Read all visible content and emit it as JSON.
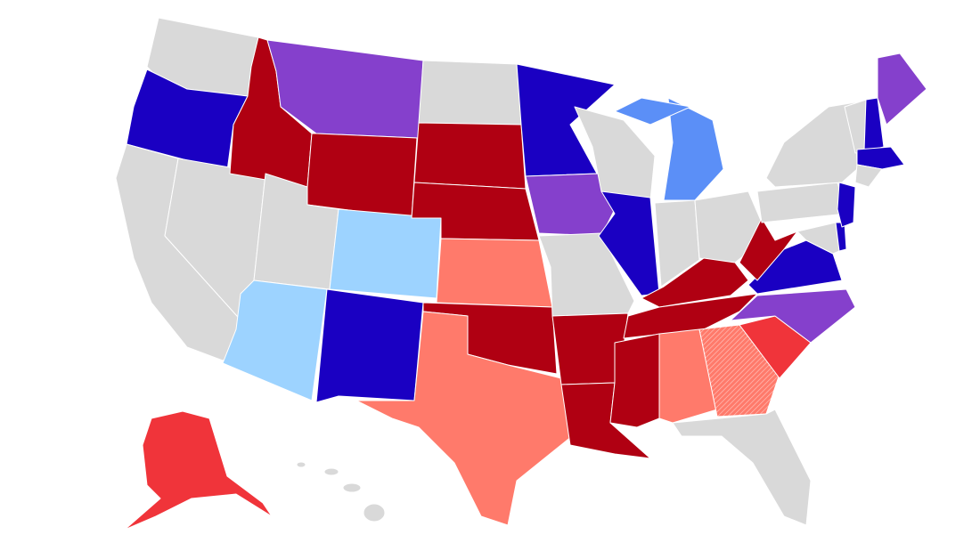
{
  "map": {
    "palette": [
      "#d9d9d9",
      "#1a00c2",
      "#9dd3ff",
      "#5b8ff7",
      "#8540cc",
      "#b00012",
      "#f0343a",
      "#ff7a6b"
    ]
  }
}
